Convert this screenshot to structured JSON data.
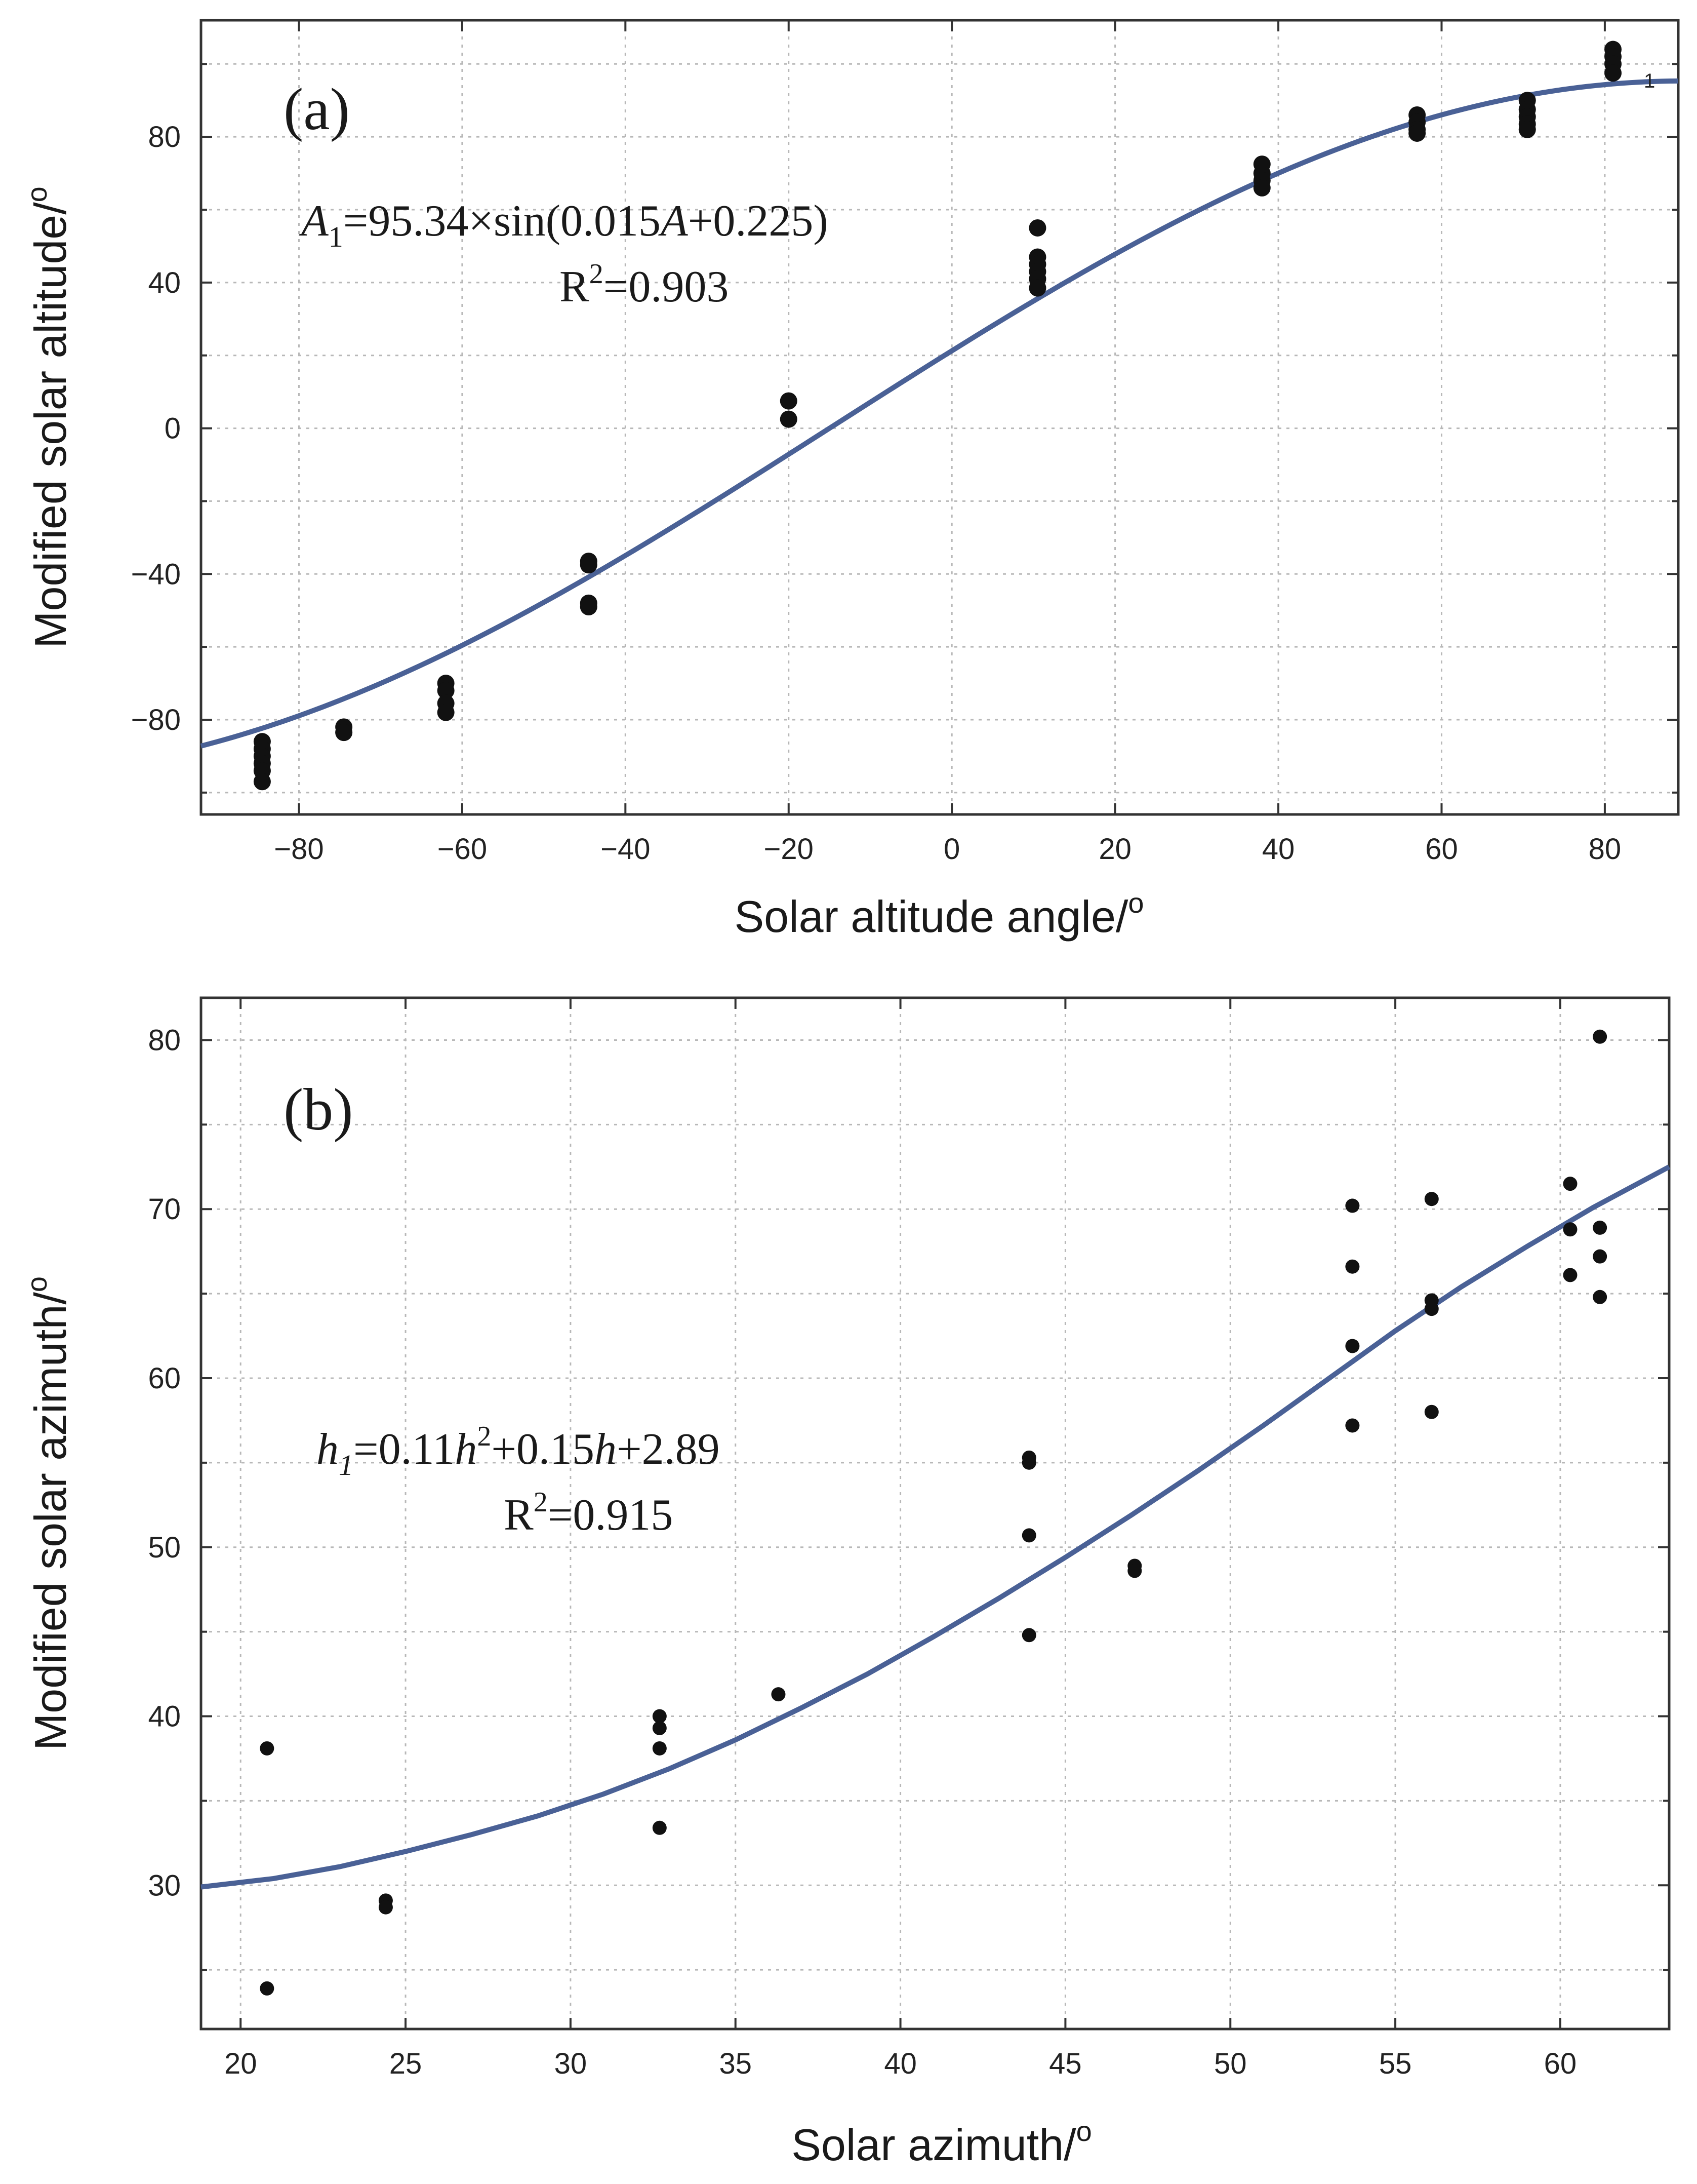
{
  "chart_data": [
    {
      "type": "scatter",
      "panel_label": "(a)",
      "xlabel": "Solar altitude angle/",
      "ylabel": "Modified solar altitude/",
      "unit_symbol": "o",
      "xlim": [
        -92,
        89
      ],
      "ylim": [
        -106,
        112
      ],
      "xticks": [
        -80,
        -60,
        -40,
        -20,
        0,
        20,
        40,
        60,
        80
      ],
      "xtick_labels": [
        "−80",
        "−60",
        "−40",
        "−20",
        "0",
        "20",
        "40",
        "60",
        "80"
      ],
      "yticks": [
        -80,
        -40,
        0,
        40,
        80
      ],
      "ytick_labels": [
        "−80",
        "−40",
        "0",
        "40",
        "80"
      ],
      "grid": true,
      "equation": {
        "lhs": "A",
        "lhs_sub": "1",
        "rhs_pre": "=95.34×sin(0.015",
        "var": "A",
        "rhs_post": "+0.225)",
        "r2_base": "R",
        "r2_sup": "2",
        "r2_val": "=0.903"
      },
      "annotation": "1",
      "points": [
        [
          -84.5,
          -86
        ],
        [
          -84.5,
          -88
        ],
        [
          -84.5,
          -90
        ],
        [
          -84.5,
          -92
        ],
        [
          -84.5,
          -94
        ],
        [
          -84.5,
          -97
        ],
        [
          -74.5,
          -82
        ],
        [
          -74.5,
          -83.5
        ],
        [
          -62,
          -70
        ],
        [
          -62,
          -72
        ],
        [
          -62,
          -75.5
        ],
        [
          -62,
          -78
        ],
        [
          -44.5,
          -36.5
        ],
        [
          -44.5,
          -37.5
        ],
        [
          -44.5,
          -48
        ],
        [
          -44.5,
          -49
        ],
        [
          -20,
          7.5
        ],
        [
          -20,
          2.5
        ],
        [
          10.5,
          55
        ],
        [
          10.5,
          47
        ],
        [
          10.5,
          45
        ],
        [
          10.5,
          43
        ],
        [
          10.5,
          41
        ],
        [
          10.5,
          38.5
        ],
        [
          38,
          72.5
        ],
        [
          38,
          70
        ],
        [
          38,
          68
        ],
        [
          38,
          66
        ],
        [
          57,
          86
        ],
        [
          57,
          84
        ],
        [
          57,
          82
        ],
        [
          57,
          81
        ],
        [
          70.5,
          90
        ],
        [
          70.5,
          87.5
        ],
        [
          70.5,
          85.5
        ],
        [
          70.5,
          83.5
        ],
        [
          70.5,
          82
        ],
        [
          81,
          104
        ],
        [
          81,
          102
        ],
        [
          81,
          100
        ],
        [
          81,
          97.5
        ]
      ],
      "fit": {
        "kind": "sine",
        "amplitude": 95.34,
        "frequency": 0.015,
        "phase": 0.225,
        "x_from": -92,
        "x_to": 89
      },
      "colors": {
        "points": "#111111",
        "fit": "#4a6196",
        "grid": "#b8b8b8"
      }
    },
    {
      "type": "scatter",
      "panel_label": "(b)",
      "xlabel": "Solar azimuth/",
      "ylabel": "Modified solar azimuth/",
      "unit_symbol": "o",
      "xlim": [
        18.8,
        63.3
      ],
      "ylim": [
        21.5,
        82.5
      ],
      "xticks": [
        20,
        25,
        30,
        35,
        40,
        45,
        50,
        55,
        60
      ],
      "xtick_labels": [
        "20",
        "25",
        "30",
        "35",
        "40",
        "45",
        "50",
        "55",
        "60"
      ],
      "yticks": [
        30,
        40,
        50,
        60,
        70,
        80
      ],
      "ytick_labels": [
        "30",
        "40",
        "50",
        "60",
        "70",
        "80"
      ],
      "grid": true,
      "equation": {
        "lhs": "h",
        "lhs_sub": "1",
        "rhs_a": "=0.11",
        "var_a": "h",
        "sup_a": "2",
        "rhs_b": "+0.15",
        "var_b": "h",
        "rhs_c": "+2.89",
        "r2_base": "R",
        "r2_sup": "2",
        "r2_val": "=0.915"
      },
      "points": [
        [
          20.8,
          38.1
        ],
        [
          20.8,
          23.9
        ],
        [
          24.4,
          29.1
        ],
        [
          24.4,
          28.7
        ],
        [
          32.7,
          40.0
        ],
        [
          32.7,
          39.3
        ],
        [
          32.7,
          38.1
        ],
        [
          32.7,
          33.4
        ],
        [
          36.3,
          41.3
        ],
        [
          43.9,
          55.3
        ],
        [
          43.9,
          55.0
        ],
        [
          43.9,
          50.7
        ],
        [
          43.9,
          44.8
        ],
        [
          47.1,
          48.9
        ],
        [
          47.1,
          48.6
        ],
        [
          53.7,
          70.2
        ],
        [
          53.7,
          66.6
        ],
        [
          53.7,
          61.9
        ],
        [
          53.7,
          57.2
        ],
        [
          56.1,
          70.6
        ],
        [
          56.1,
          64.6
        ],
        [
          56.1,
          64.1
        ],
        [
          56.1,
          58.0
        ],
        [
          60.3,
          71.5
        ],
        [
          60.3,
          68.8
        ],
        [
          60.3,
          66.1
        ],
        [
          61.2,
          80.2
        ],
        [
          61.2,
          68.9
        ],
        [
          61.2,
          67.2
        ],
        [
          61.2,
          64.8
        ]
      ],
      "fit_points": [
        [
          18.8,
          29.9
        ],
        [
          21,
          30.4
        ],
        [
          23,
          31.1
        ],
        [
          25,
          32.0
        ],
        [
          27,
          33.0
        ],
        [
          29,
          34.1
        ],
        [
          31,
          35.4
        ],
        [
          33,
          36.9
        ],
        [
          35,
          38.6
        ],
        [
          37,
          40.5
        ],
        [
          39,
          42.5
        ],
        [
          41,
          44.7
        ],
        [
          43,
          47.0
        ],
        [
          45,
          49.4
        ],
        [
          47,
          51.9
        ],
        [
          49,
          54.5
        ],
        [
          51,
          57.2
        ],
        [
          53,
          60.0
        ],
        [
          55,
          62.8
        ],
        [
          57,
          65.4
        ],
        [
          59,
          67.8
        ],
        [
          61,
          70.1
        ],
        [
          63.3,
          72.5
        ]
      ],
      "colors": {
        "points": "#111111",
        "fit": "#4a6196",
        "grid": "#b8b8b8"
      }
    }
  ]
}
